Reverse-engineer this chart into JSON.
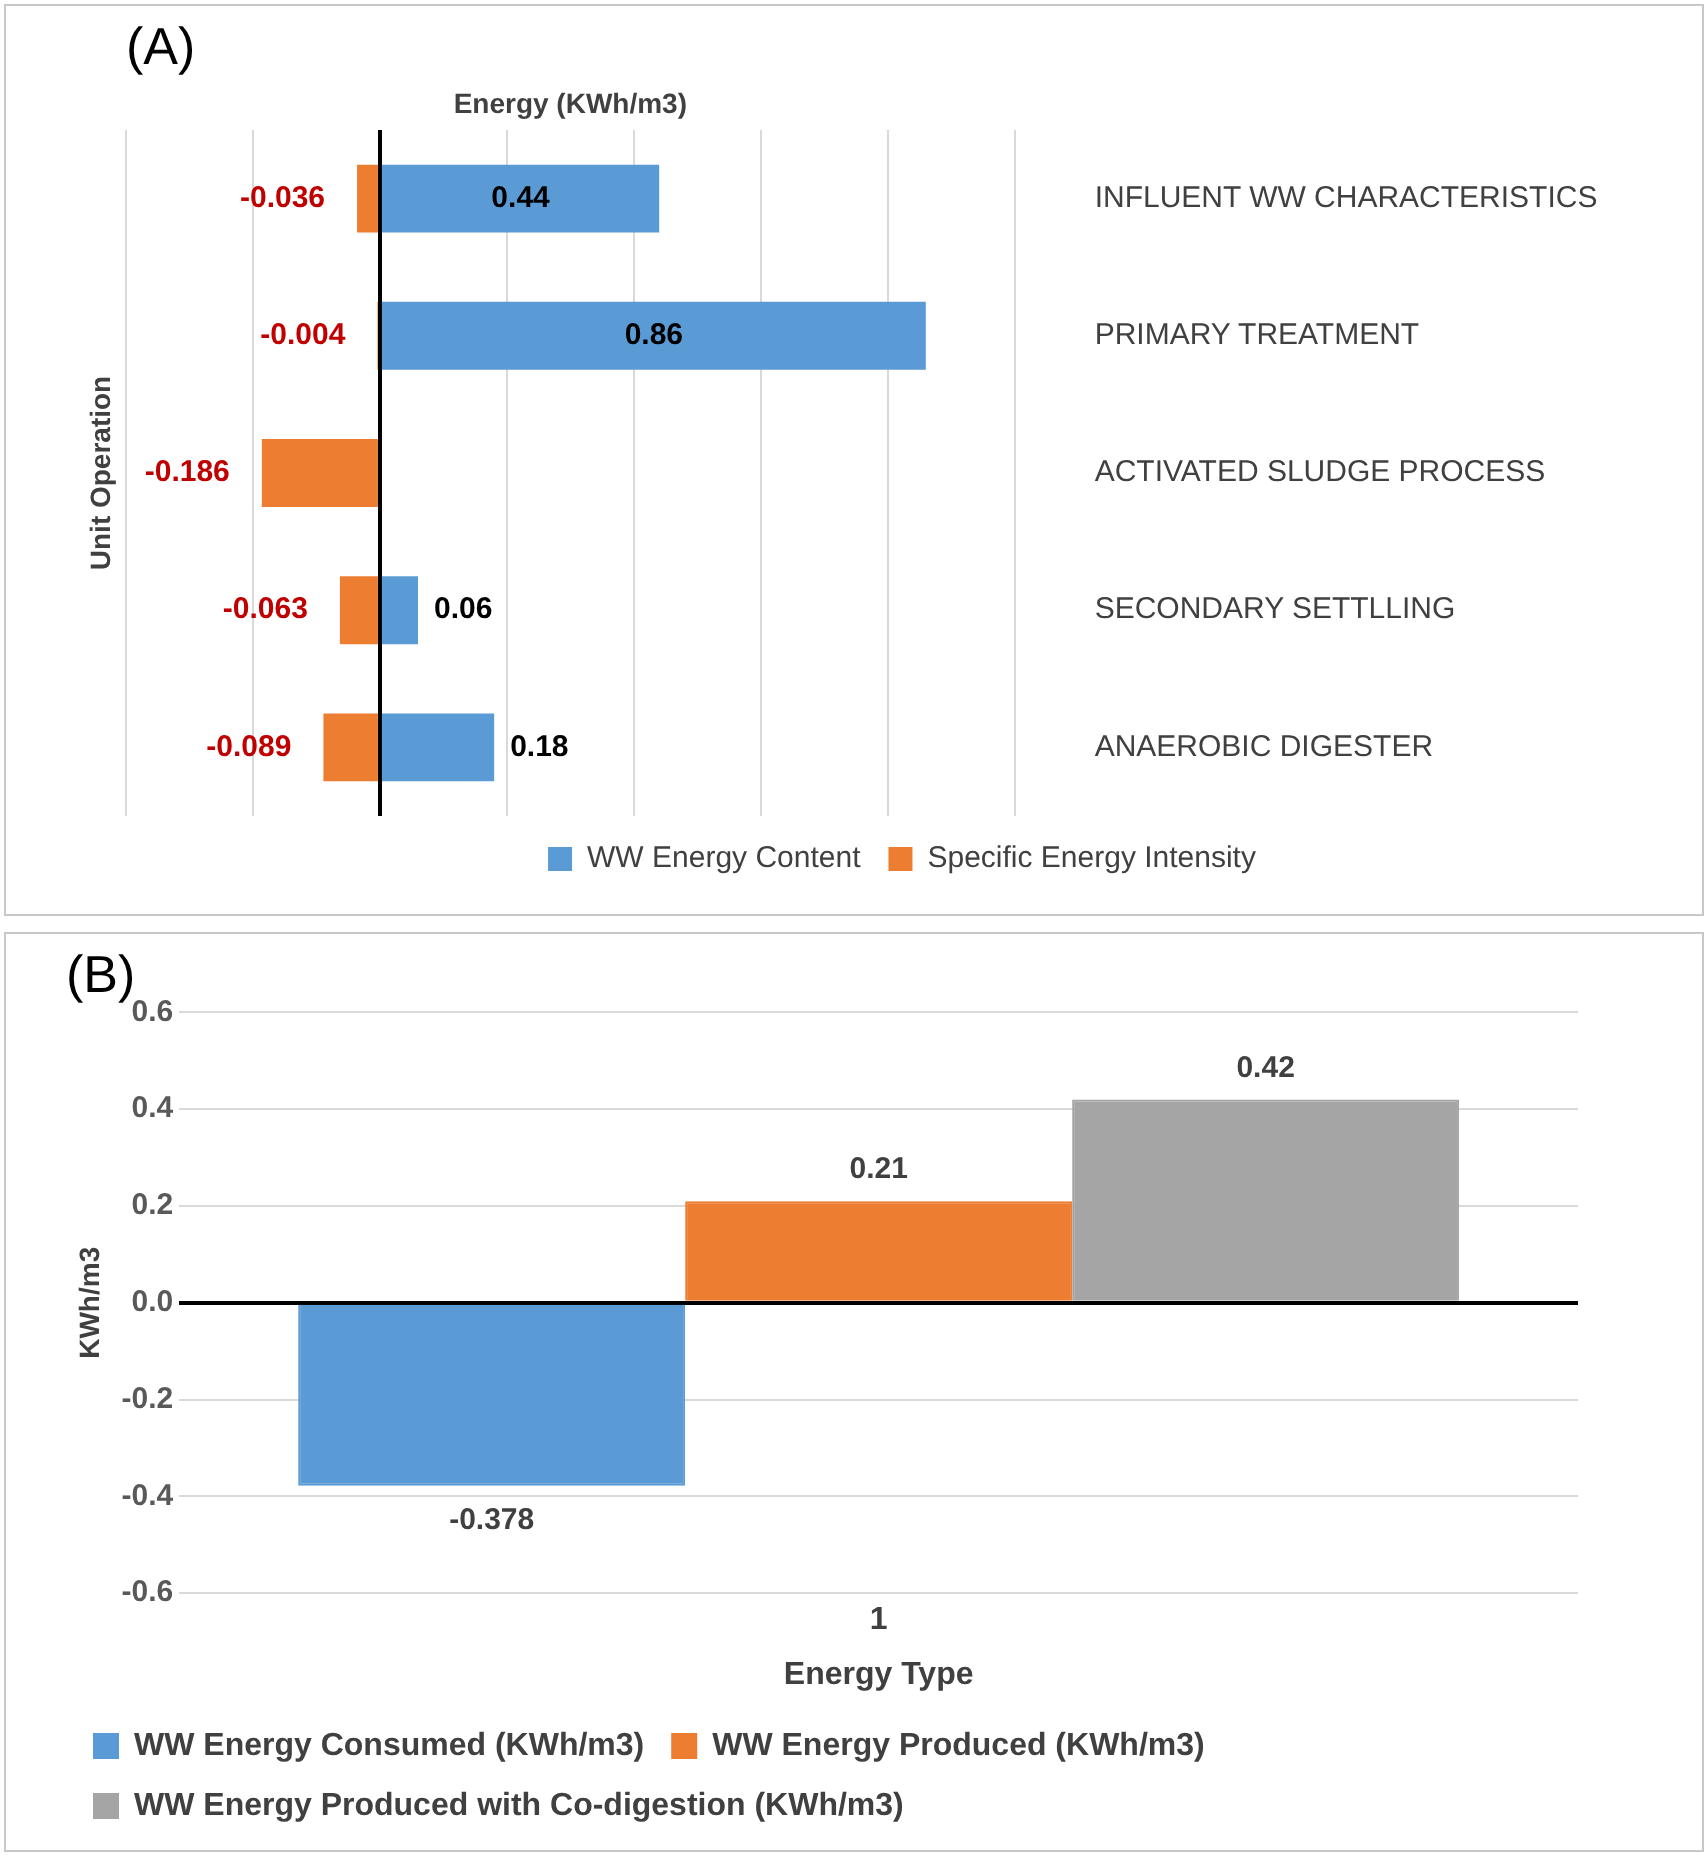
{
  "chart_data": [
    {
      "type": "bar",
      "title": "(A)",
      "xlabel": "Energy (KWh/m3)",
      "ylabel": "Unit Operation",
      "orientation": "horizontal",
      "categories": [
        "INFLUENT WW CHARACTERISTICS",
        "PRIMARY TREATMENT",
        "ACTIVATED SLUDGE PROCESS",
        "SECONDARY SETTLLING",
        "ANAEROBIC DIGESTER"
      ],
      "series": [
        {
          "name": "WW Energy Content",
          "color": "#5b9bd5",
          "values": [
            0.44,
            0.86,
            null,
            0.06,
            0.18
          ]
        },
        {
          "name": "Specific Energy Intensity",
          "color": "#ed7d31",
          "values": [
            -0.036,
            -0.004,
            -0.186,
            -0.063,
            -0.089
          ]
        }
      ],
      "xlim": [
        -0.4,
        1.0
      ],
      "stacked": true,
      "grid": "x",
      "legend": "bottom",
      "data_labels": true,
      "tick_labels": "y"
    },
    {
      "type": "bar",
      "title": "(B)",
      "xlabel": "Energy Type",
      "ylabel": "KWh/m3",
      "categories": [
        "1"
      ],
      "series": [
        {
          "name": "WW Energy Consumed (KWh/m3)",
          "color": "#5b9bd5",
          "values": [
            -0.378
          ]
        },
        {
          "name": "WW Energy Produced (KWh/m3)",
          "color": "#ed7d31",
          "values": [
            0.21
          ]
        },
        {
          "name": "WW Energy Produced with Co-digestion (KWh/m3)",
          "color": "#a5a5a5",
          "values": [
            0.42
          ]
        }
      ],
      "ylim": [
        -0.6,
        0.6
      ],
      "yticks": [
        -0.6,
        -0.4,
        -0.2,
        {
          "value": 0,
          "label": "0.0"
        },
        0.2,
        0.4,
        0.6
      ],
      "grid": "y",
      "legend": "bottom",
      "data_labels": true
    }
  ]
}
